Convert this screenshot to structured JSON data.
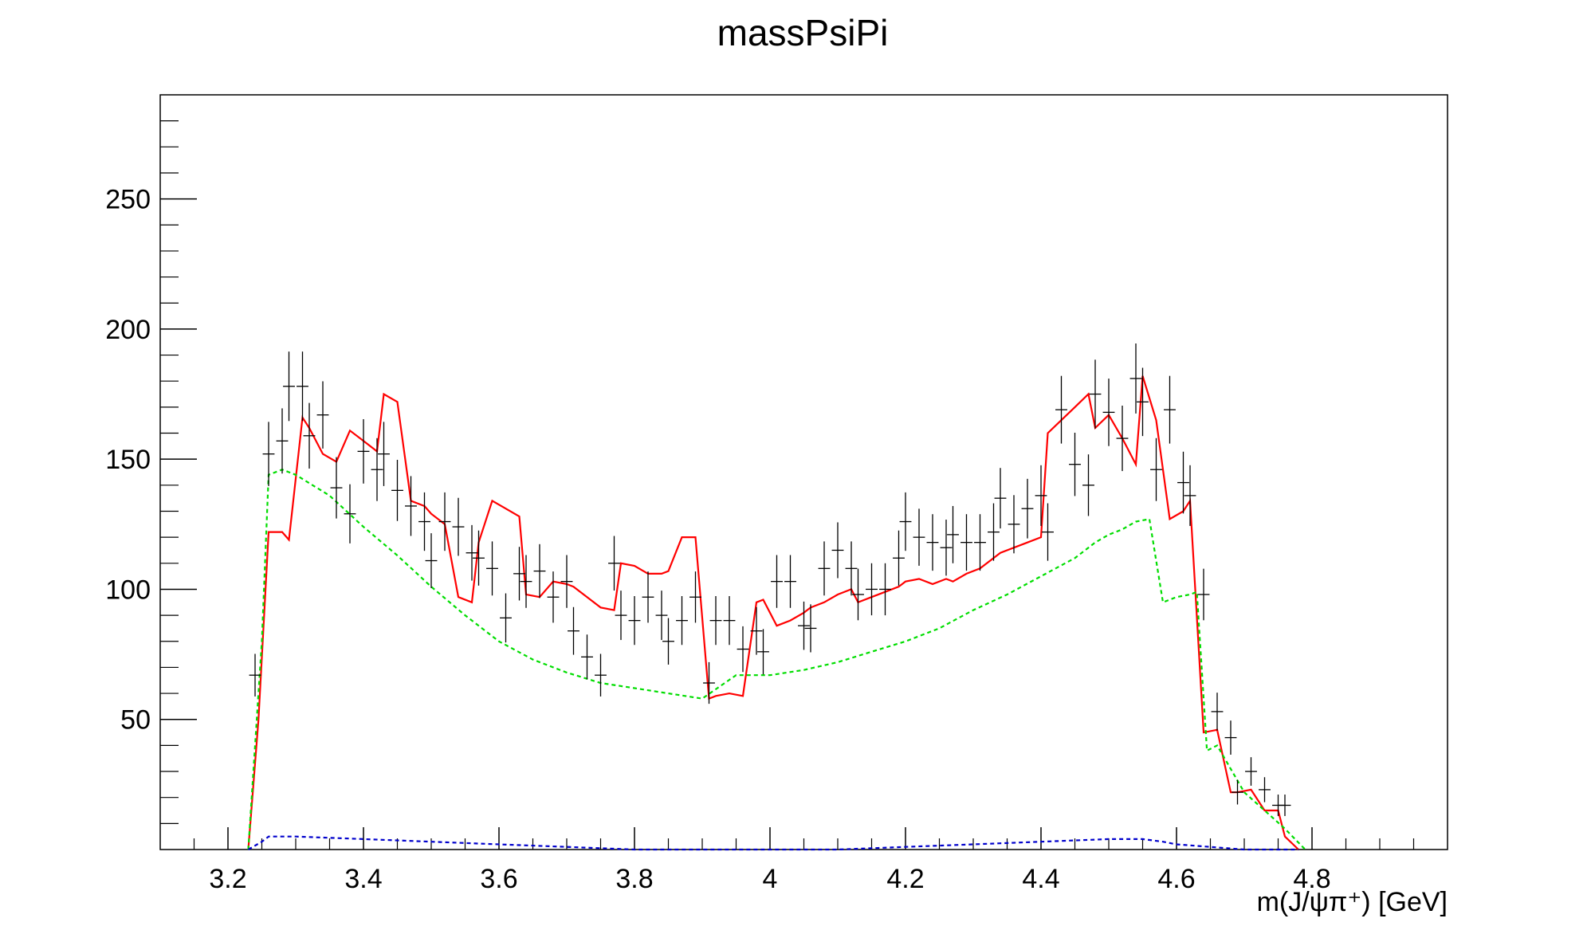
{
  "chart_data": {
    "type": "line",
    "title": "massPsiPi",
    "xlabel": "m(J/ψπ⁺) [GeV]",
    "ylabel": "",
    "xlim": [
      3.1,
      5.0
    ],
    "ylim": [
      0,
      290
    ],
    "x_ticks": [
      "3.2",
      "3.4",
      "3.6",
      "3.8",
      "4",
      "4.2",
      "4.4",
      "4.6",
      "4.8"
    ],
    "y_ticks": [
      "50",
      "100",
      "150",
      "200",
      "250"
    ],
    "grid": false,
    "legend": "none",
    "colors": {
      "data": "#000000",
      "fit_total": "#ff0000",
      "component_green": "#00dd00",
      "component_blue": "#0000cc"
    },
    "data_points": {
      "x": [
        3.24,
        3.26,
        3.28,
        3.29,
        3.31,
        3.32,
        3.34,
        3.36,
        3.38,
        3.4,
        3.42,
        3.43,
        3.45,
        3.47,
        3.49,
        3.5,
        3.52,
        3.54,
        3.56,
        3.57,
        3.59,
        3.61,
        3.63,
        3.64,
        3.66,
        3.68,
        3.7,
        3.71,
        3.73,
        3.75,
        3.77,
        3.78,
        3.8,
        3.82,
        3.84,
        3.85,
        3.87,
        3.89,
        3.91,
        3.92,
        3.94,
        3.96,
        3.98,
        3.99,
        4.01,
        4.03,
        4.05,
        4.06,
        4.08,
        4.1,
        4.12,
        4.13,
        4.15,
        4.17,
        4.19,
        4.2,
        4.22,
        4.24,
        4.26,
        4.27,
        4.29,
        4.31,
        4.33,
        4.34,
        4.36,
        4.38,
        4.4,
        4.41,
        4.43,
        4.45,
        4.47,
        4.48,
        4.5,
        4.52,
        4.54,
        4.55,
        4.57,
        4.59,
        4.61,
        4.62,
        4.64,
        4.66,
        4.68,
        4.69,
        4.71,
        4.73,
        4.75,
        4.76
      ],
      "y": [
        67,
        152,
        157,
        178,
        178,
        159,
        167,
        139,
        129,
        153,
        146,
        152,
        138,
        132,
        126,
        111,
        126,
        124,
        114,
        112,
        108,
        89,
        106,
        103,
        107,
        97,
        103,
        84,
        74,
        67,
        110,
        90,
        88,
        97,
        90,
        80,
        88,
        97,
        64,
        88,
        88,
        77,
        84,
        76,
        103,
        103,
        86,
        85,
        108,
        115,
        108,
        98,
        100,
        100,
        112,
        126,
        120,
        118,
        116,
        121,
        118,
        118,
        122,
        135,
        125,
        131,
        136,
        122,
        169,
        148,
        140,
        175,
        168,
        158,
        181,
        172,
        146,
        169,
        141,
        136,
        98,
        53,
        43,
        22,
        30,
        23,
        17,
        17
      ]
    },
    "series": [
      {
        "x": [
          3.23,
          3.245,
          3.26,
          3.28,
          3.29,
          3.31,
          3.32,
          3.34,
          3.36,
          3.38,
          3.4,
          3.42,
          3.43,
          3.45,
          3.47,
          3.49,
          3.5,
          3.52,
          3.54,
          3.56,
          3.57,
          3.59,
          3.61,
          3.63,
          3.64,
          3.66,
          3.68,
          3.7,
          3.71,
          3.73,
          3.75,
          3.77,
          3.78,
          3.8,
          3.82,
          3.84,
          3.85,
          3.87,
          3.89,
          3.91,
          3.92,
          3.94,
          3.96,
          3.98,
          3.99,
          4.01,
          4.03,
          4.05,
          4.06,
          4.08,
          4.1,
          4.12,
          4.13,
          4.15,
          4.17,
          4.19,
          4.2,
          4.22,
          4.24,
          4.26,
          4.27,
          4.29,
          4.31,
          4.33,
          4.34,
          4.36,
          4.38,
          4.4,
          4.41,
          4.43,
          4.45,
          4.47,
          4.48,
          4.5,
          4.52,
          4.54,
          4.55,
          4.57,
          4.59,
          4.61,
          4.62,
          4.64,
          4.66,
          4.68,
          4.69,
          4.71,
          4.73,
          4.75,
          4.76,
          4.78
        ],
        "y": [
          0,
          50,
          122,
          122,
          119,
          166,
          162,
          152,
          149,
          161,
          157,
          153,
          175,
          172,
          134,
          132,
          129,
          125,
          97,
          95,
          118,
          134,
          131,
          128,
          98,
          97,
          103,
          102,
          101,
          97,
          93,
          92,
          110,
          109,
          106,
          106,
          107,
          120,
          120,
          58,
          59,
          60,
          59,
          95,
          96,
          86,
          88,
          91,
          93,
          95,
          98,
          100,
          95,
          97,
          99,
          101,
          103,
          104,
          102,
          104,
          103,
          106,
          108,
          112,
          114,
          116,
          118,
          120,
          160,
          165,
          170,
          175,
          162,
          167,
          158,
          148,
          182,
          165,
          127,
          130,
          134,
          45,
          46,
          22,
          22,
          23,
          15,
          15,
          5,
          0
        ]
      },
      {
        "x": [
          3.23,
          3.25,
          3.26,
          3.28,
          3.3,
          3.35,
          3.4,
          3.45,
          3.5,
          3.55,
          3.6,
          3.65,
          3.7,
          3.75,
          3.8,
          3.85,
          3.9,
          3.95,
          4.0,
          4.05,
          4.1,
          4.15,
          4.2,
          4.25,
          4.3,
          4.35,
          4.4,
          4.45,
          4.48,
          4.5,
          4.52,
          4.54,
          4.56,
          4.58,
          4.6,
          4.62,
          4.63,
          4.645,
          4.66,
          4.7,
          4.73,
          4.76,
          4.79
        ],
        "y": [
          0,
          80,
          144,
          146,
          144,
          136,
          124,
          113,
          101,
          90,
          80,
          73,
          68,
          64,
          62,
          60,
          58,
          67,
          67,
          69,
          72,
          76,
          80,
          85,
          92,
          98,
          105,
          112,
          118,
          121,
          123,
          126,
          127,
          95,
          97,
          98,
          99,
          38,
          40,
          22,
          15,
          8,
          0
        ]
      },
      {
        "x": [
          3.23,
          3.25,
          3.26,
          3.3,
          3.4,
          3.5,
          3.6,
          3.7,
          3.8,
          3.9,
          4.0,
          4.1,
          4.2,
          4.3,
          4.4,
          4.5,
          4.55,
          4.58,
          4.6,
          4.65,
          4.7,
          4.75,
          4.78
        ],
        "y": [
          0,
          3,
          5,
          5,
          4,
          3,
          2,
          1,
          0,
          0,
          0,
          0,
          1,
          2,
          3,
          4,
          4,
          3,
          2,
          1,
          0,
          0,
          0
        ]
      }
    ]
  }
}
